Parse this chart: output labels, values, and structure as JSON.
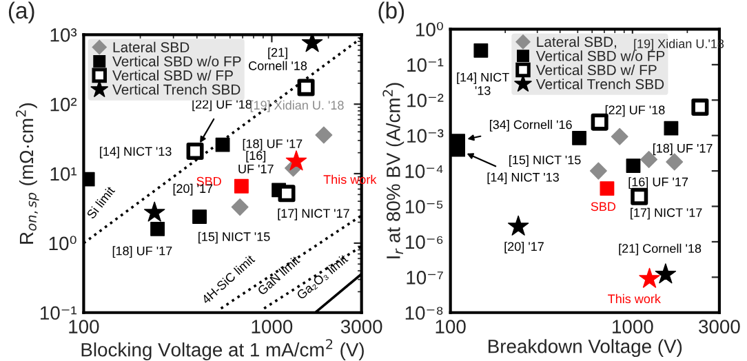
{
  "chart_data": [
    {
      "type": "scatter",
      "title": "(a)",
      "xlabel": "Blocking Voltage at 1 mA/cm$^{2}$ (V)",
      "ylabel": "R$_{on,sp}$ (mΩ·cm$^{2}$)",
      "log": "xy",
      "xlim": [
        100,
        3000
      ],
      "xticks": [
        100,
        1000,
        3000
      ],
      "ylim": [
        0.1,
        1000
      ],
      "yticks": [
        {
          "value": 0.1,
          "label": "10⁻¹"
        },
        {
          "value": 1,
          "label": "10⁰"
        },
        {
          "value": 10,
          "label": "10¹"
        },
        {
          "value": 100,
          "label": "10²"
        },
        {
          "value": 1000,
          "label": "10³"
        }
      ],
      "grid": false,
      "legend": "top left",
      "series": [
        {
          "name": "Lateral SBD",
          "marker": "diamond",
          "color": "#8c8c8c",
          "x": [
            677,
            1300,
            1890
          ],
          "values": [
            3.3,
            12,
            36
          ]
        },
        {
          "name": "Vertical SBD w/o FP",
          "marker": "square",
          "color": "#000000",
          "x": [
            105,
            247,
            413,
            548,
            1090
          ],
          "values": [
            8.3,
            1.6,
            2.4,
            26,
            5.8
          ]
        },
        {
          "name": "Vertical SBD w/ FP",
          "marker": "square",
          "color": "#ffffff",
          "x": [
            391,
            1200,
            1520
          ],
          "values": [
            21,
            5.2,
            174
          ]
        },
        {
          "name": "Vertical Trench SBD",
          "marker": "star",
          "color": "#000000",
          "x": [
            238,
            1640
          ],
          "values": [
            2.75,
            760
          ]
        },
        {
          "marker": "square",
          "color": "#ff0000",
          "x": [
            690
          ],
          "values": [
            6.6
          ]
        },
        {
          "marker": "star",
          "color": "#ff0000",
          "x": [
            1350
          ],
          "values": [
            15
          ]
        },
        {
          "type": "line",
          "line_style": "dotted",
          "color": "#000000",
          "x": [
            100,
            3000
          ],
          "values": [
            1.0,
            900
          ]
        },
        {
          "type": "line",
          "line_style": "dotted",
          "color": "#000000",
          "x": [
            537,
            3000
          ],
          "values": [
            0.115,
            2.5
          ]
        },
        {
          "type": "line",
          "line_style": "dotted",
          "color": "#000000",
          "x": [
            910,
            3000
          ],
          "values": [
            0.115,
            0.9
          ]
        },
        {
          "type": "line",
          "line_style": "solid",
          "color": "#000000",
          "x": [
            1700,
            3000
          ],
          "values": [
            0.1,
            0.36
          ]
        }
      ],
      "annotations": [
        {
          "text": "[14] NICT '13",
          "x": 105,
          "y": 8.3
        },
        {
          "text": "[22] UF '18",
          "x": 391,
          "y": 21
        },
        {
          "text": "[18] UF '17",
          "x": 548,
          "y": 26
        },
        {
          "text": "[19] Xidian U. '18",
          "x": 1890,
          "y": 36
        },
        {
          "text": "[16]\nUF '17",
          "x": 1090,
          "y": 5.8
        },
        {
          "text": "This work",
          "x": 1350,
          "y": 15
        },
        {
          "text": "SBD",
          "x": 690,
          "y": 6.6
        },
        {
          "text": "[20] '17",
          "x": 238,
          "y": 2.75
        },
        {
          "text": "[17] NICT '17",
          "x": 1200,
          "y": 5.2
        },
        {
          "text": "[15] NICT '15",
          "x": 413,
          "y": 2.4
        },
        {
          "text": "[18] UF '17",
          "x": 247,
          "y": 1.6
        },
        {
          "text": "[21]\nCornell '18",
          "x": 1640,
          "y": 760
        },
        {
          "text": "Si limit",
          "x": 150,
          "y": 2.25
        },
        {
          "text": "4H-SiC limit",
          "x": 680,
          "y": 0.176
        },
        {
          "text": "GaN limit",
          "x": 1260,
          "y": 0.2
        },
        {
          "text": "Ga₂O₃ limit",
          "x": 2200,
          "y": 0.179
        }
      ]
    },
    {
      "type": "scatter",
      "title": "(b)",
      "xlabel": "Breakdown Voltage (V)",
      "ylabel": "I$_{r}$ at 80% BV (A/cm$^{2}$)",
      "log": "xy",
      "xlim": [
        100,
        3000
      ],
      "xticks": [
        100,
        1000,
        3000
      ],
      "ylim": [
        1e-08,
        1
      ],
      "yticks": [
        {
          "value": 1e-08,
          "label": "10⁻⁸"
        },
        {
          "value": 1e-07,
          "label": "10⁻⁷"
        },
        {
          "value": 1e-06,
          "label": "10⁻⁶"
        },
        {
          "value": 1e-05,
          "label": "10⁻⁵"
        },
        {
          "value": 0.0001,
          "label": "10⁻⁴"
        },
        {
          "value": 0.001,
          "label": "10⁻³"
        },
        {
          "value": 0.01,
          "label": "10⁻²"
        },
        {
          "value": 0.1,
          "label": "10⁻¹"
        },
        {
          "value": 1,
          "label": "10⁰"
        }
      ],
      "grid": false,
      "legend": "top right",
      "series": [
        {
          "name": "Lateral SBD,",
          "marker": "diamond",
          "color": "#8c8c8c",
          "x": [
            650,
            850,
            1230,
            1700
          ],
          "values": [
            0.0001,
            0.00093,
            0.00021,
            0.00018
          ]
        },
        {
          "name": "Vertical SBD w/o FP",
          "marker": "square",
          "color": "#000000",
          "x": [
            110,
            110,
            147,
            510,
            1010,
            1630
          ],
          "values": [
            0.0007,
            0.0004,
            0.25,
            0.00085,
            0.00014,
            0.0016
          ]
        },
        {
          "name": "Vertical SBD w/ FP",
          "marker": "square",
          "color": "#ffffff",
          "x": [
            660,
            1090,
            2350
          ],
          "values": [
            0.0024,
            1.9e-05,
            0.0063
          ]
        },
        {
          "name": "Vertical Trench SBD",
          "marker": "star",
          "color": "#000000",
          "x": [
            236,
            1520
          ],
          "values": [
            2.7e-06,
            1.2e-07
          ]
        },
        {
          "marker": "square",
          "color": "#ff0000",
          "x": [
            725
          ],
          "values": [
            3.2e-05
          ]
        },
        {
          "marker": "star",
          "color": "#ff0000",
          "x": [
            1240
          ],
          "values": [
            9e-08
          ]
        }
      ],
      "annotations": [
        {
          "text": "[14] NICT\n'13",
          "x": 147,
          "y": 0.25
        },
        "[19] Xidian U.'18",
        {
          "text": "[34] Cornell '16",
          "x": 110,
          "y": 0.0007
        },
        {
          "text": "[14] NICT '13",
          "x": 110,
          "y": 0.0004
        },
        {
          "text": "[15] NICT '15",
          "x": 510,
          "y": 0.00085
        },
        {
          "text": "[22] UF '18",
          "x": 2350,
          "y": 0.0063
        },
        {
          "text": "[18] UF '17",
          "x": 1630,
          "y": 0.0016
        },
        {
          "text": "[16] UF '17",
          "x": 1010,
          "y": 0.00014
        },
        {
          "text": "SBD",
          "x": 725,
          "y": 3.2e-05
        },
        {
          "text": "[17] NICT '17",
          "x": 1090,
          "y": 1.9e-05
        },
        {
          "text": "[20] '17",
          "x": 236,
          "y": 2.7e-06
        },
        {
          "text": "[21] Cornell '18",
          "x": 1520,
          "y": 1.2e-07
        },
        {
          "text": "This work",
          "x": 1240,
          "y": 9e-08
        }
      ]
    }
  ]
}
